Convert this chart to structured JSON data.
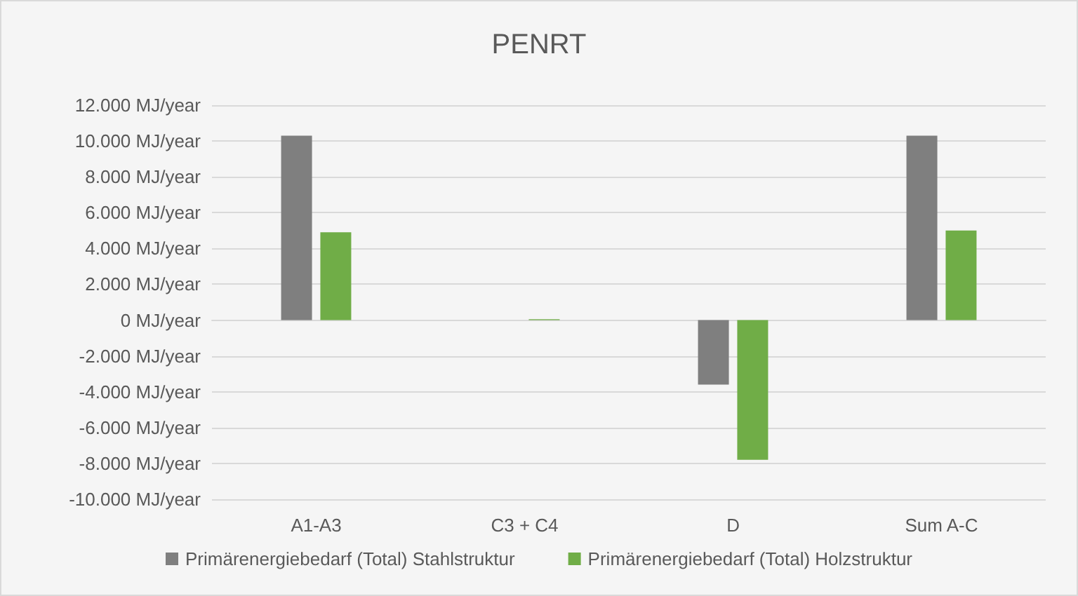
{
  "chart_data": {
    "type": "bar",
    "title": "PENRT",
    "categories": [
      "A1-A3",
      "C3 + C4",
      "D",
      "Sum A-C"
    ],
    "series": [
      {
        "name": "Primärenergiebedarf (Total) Stahlstruktur",
        "color": "#7f7f7f",
        "values": [
          10300,
          0,
          -3600,
          10300
        ]
      },
      {
        "name": "Primärenergiebedarf (Total) Holzstruktur",
        "color": "#70ad47",
        "values": [
          4900,
          50,
          -7800,
          5000
        ]
      }
    ],
    "ylim": [
      -10000,
      12000
    ],
    "yticks": [
      {
        "value": -10000,
        "label": "-10.000 MJ/year"
      },
      {
        "value": -8000,
        "label": "-8.000 MJ/year"
      },
      {
        "value": -6000,
        "label": "-6.000 MJ/year"
      },
      {
        "value": -4000,
        "label": "-4.000 MJ/year"
      },
      {
        "value": -2000,
        "label": "-2.000 MJ/year"
      },
      {
        "value": 0,
        "label": "0 MJ/year"
      },
      {
        "value": 2000,
        "label": "2.000 MJ/year"
      },
      {
        "value": 4000,
        "label": "4.000 MJ/year"
      },
      {
        "value": 6000,
        "label": "6.000 MJ/year"
      },
      {
        "value": 8000,
        "label": "8.000 MJ/year"
      },
      {
        "value": 10000,
        "label": "10.000 MJ/year"
      },
      {
        "value": 12000,
        "label": "12.000 MJ/year"
      }
    ],
    "grid": "y",
    "legend": "bottom"
  }
}
